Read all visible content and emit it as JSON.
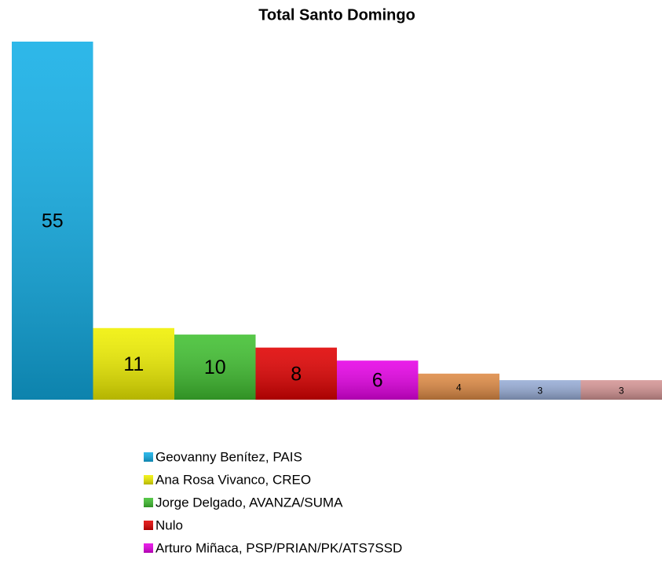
{
  "chart_data": {
    "type": "bar",
    "title": "Total Santo Domingo",
    "categories": [
      "Geovanny Benítez, PAIS",
      "Ana Rosa Vivanco, CREO",
      "Jorge Delgado, AVANZA/SUMA",
      "Nulo",
      "Arturo Miñaca, PSP/PRIAN/PK/ATS7SSD",
      null,
      null,
      null
    ],
    "values": [
      55,
      11,
      10,
      8,
      6,
      4,
      3,
      3
    ],
    "colors": [
      "#11aee6",
      "#f0f000",
      "#40c030",
      "#e00000",
      "#e600e6",
      "#de8a44",
      "#97acd6",
      "#d49494"
    ]
  }
}
